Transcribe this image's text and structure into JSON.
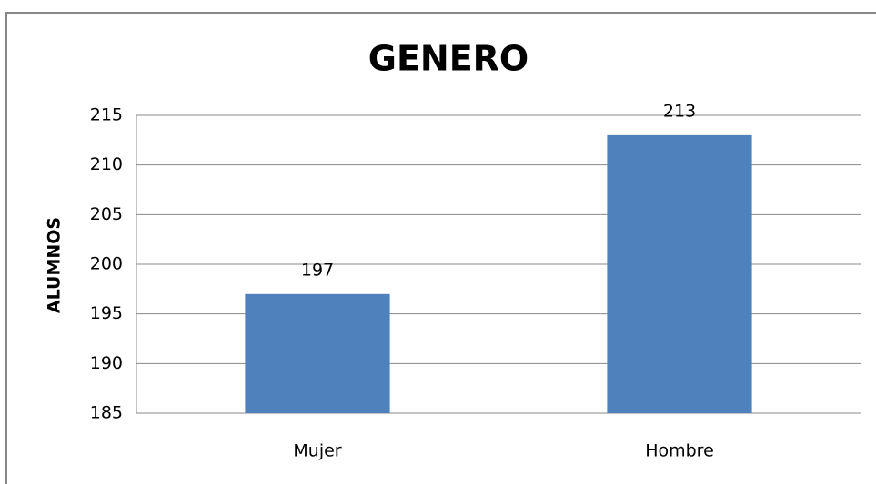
{
  "chart_data": {
    "type": "bar",
    "title": "GENERO",
    "y_label": "ALUMNOS",
    "categories": [
      "Mujer",
      "Hombre"
    ],
    "values": [
      197,
      213
    ],
    "color": "#4f81bd",
    "ylim": [
      185,
      215
    ],
    "yticks": [
      185,
      190,
      195,
      200,
      205,
      210,
      215
    ],
    "grid": true
  }
}
